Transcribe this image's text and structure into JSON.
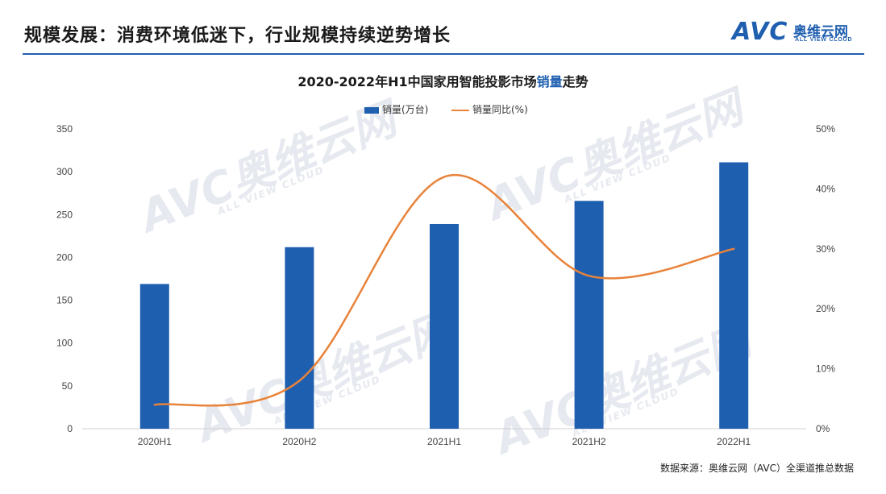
{
  "header": {
    "title": "规模发展：消费环境低迷下，行业规模持续逆势增长",
    "logo_text": "AVC",
    "logo_cn": "奥维云网",
    "logo_en": "ALL VIEW CLOUD"
  },
  "watermark": {
    "big": "AVC奥维云网",
    "small": "ALL VIEW CLOUD"
  },
  "source_text": "数据来源：奥维云网（AVC）全渠道推总数据",
  "colors": {
    "bar": "#1f5fb0",
    "line": "#e8833a",
    "accent": "#1f5fb0"
  },
  "chart_data": {
    "type": "bar",
    "title_prefix": "2020-2022年H1中国家用智能投影市场",
    "title_highlight": "销量",
    "title_suffix": "走势",
    "categories": [
      "2020H1",
      "2020H2",
      "2021H1",
      "2021H2",
      "2022H1"
    ],
    "series": [
      {
        "name": "销量(万台)",
        "type": "bar",
        "axis": "left",
        "values": [
          169,
          212,
          239,
          266,
          311
        ]
      },
      {
        "name": "销量同比(%)",
        "type": "line",
        "smooth": true,
        "axis": "right",
        "values": [
          4,
          8,
          42,
          25.5,
          30
        ]
      }
    ],
    "y_left": {
      "min": 0,
      "max": 350,
      "ticks": [
        "0",
        "50",
        "100",
        "150",
        "200",
        "250",
        "300",
        "350"
      ]
    },
    "y_right": {
      "min": 0,
      "max": 50,
      "ticks": [
        "0%",
        "10%",
        "20%",
        "30%",
        "40%",
        "50%"
      ]
    },
    "grid": false,
    "legend_position": "top-center"
  }
}
